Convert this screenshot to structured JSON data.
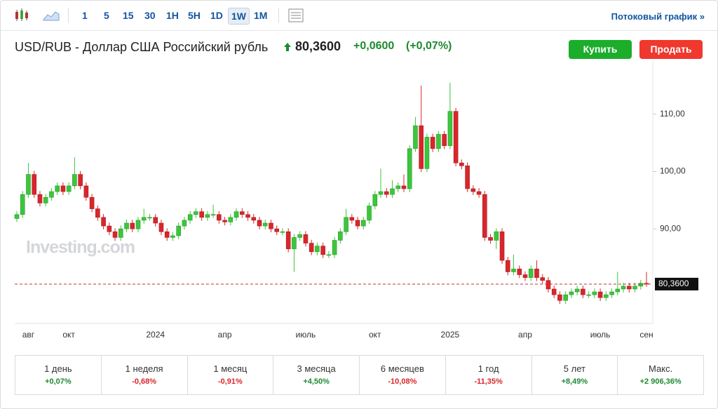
{
  "toolbar": {
    "intervals": [
      "1",
      "5",
      "15",
      "30",
      "1H",
      "5H",
      "1D",
      "1W",
      "1M"
    ],
    "selected": 7,
    "stream_link": "Потоковый график »"
  },
  "header": {
    "title": "USD/RUB - Доллар США Российский рубль",
    "price": "80,3600",
    "change": "+0,0600",
    "change_pct": "(+0,07%)",
    "buy": "Купить",
    "sell": "Продать"
  },
  "periods": [
    {
      "label": "1 день",
      "change": "+0,07%"
    },
    {
      "label": "1 неделя",
      "change": "-0,68%"
    },
    {
      "label": "1 месяц",
      "change": "-0,91%"
    },
    {
      "label": "3 месяца",
      "change": "+4,50%"
    },
    {
      "label": "6 месяцев",
      "change": "-10,08%"
    },
    {
      "label": "1 год",
      "change": "-11,35%"
    },
    {
      "label": "5 лет",
      "change": "+8,49%"
    },
    {
      "label": "Макс.",
      "change": "+2 906,36%"
    }
  ],
  "chart_data": {
    "type": "candlestick",
    "watermark": "Investing.com",
    "up_color": "#3cc63c",
    "down_color": "#d9262b",
    "categories": [
      null,
      null,
      "авг",
      null,
      null,
      null,
      null,
      null,
      null,
      "окт",
      null,
      null,
      null,
      null,
      null,
      null,
      null,
      null,
      null,
      null,
      null,
      null,
      null,
      null,
      "2024",
      null,
      null,
      null,
      null,
      null,
      null,
      null,
      null,
      null,
      null,
      null,
      "апр",
      null,
      null,
      null,
      null,
      null,
      null,
      null,
      null,
      null,
      null,
      null,
      null,
      null,
      "июль",
      null,
      null,
      null,
      null,
      null,
      null,
      null,
      null,
      null,
      null,
      null,
      "окт",
      null,
      null,
      null,
      null,
      null,
      null,
      null,
      null,
      null,
      null,
      null,
      null,
      "2025",
      null,
      null,
      null,
      null,
      null,
      null,
      null,
      null,
      null,
      null,
      null,
      null,
      "апр",
      null,
      null,
      null,
      null,
      null,
      null,
      null,
      null,
      null,
      null,
      null,
      null,
      "июль",
      null,
      null,
      null,
      null,
      null,
      null,
      null,
      "сен"
    ],
    "open": [
      91.8,
      92.5,
      96,
      99.5,
      96,
      94.5,
      95.5,
      96.5,
      97.5,
      96.5,
      97.5,
      99.5,
      97.5,
      95.5,
      93.5,
      92,
      90.5,
      89.5,
      88.5,
      90,
      91,
      90,
      91.5,
      92,
      92,
      91,
      89.5,
      88.5,
      88.8,
      90.5,
      91.5,
      92.5,
      93,
      92,
      92.5,
      92.5,
      91.5,
      91.2,
      92,
      93,
      92.5,
      92,
      91.5,
      90.5,
      91,
      90,
      89.5,
      89.5,
      86.5,
      88.5,
      89,
      87.5,
      86,
      87,
      85.5,
      85.5,
      88,
      89.5,
      92,
      91.5,
      90.5,
      91.5,
      94,
      96,
      96.5,
      96,
      97,
      97.5,
      97,
      104,
      108,
      100.5,
      106,
      104,
      106.5,
      104.5,
      110.5,
      101.5,
      101,
      97,
      96.5,
      96,
      88.5,
      88,
      89.5,
      84.5,
      82.5,
      83,
      82,
      81.5,
      83,
      81.5,
      81,
      79.5,
      78.5,
      77.5,
      78.5,
      79,
      79.5,
      78.5,
      78.5,
      79,
      78,
      78.5,
      79,
      79.5,
      80,
      79.5,
      80,
      80.5
    ],
    "high": [
      93.1,
      96.6,
      101.5,
      100.1,
      96.6,
      96.1,
      97.1,
      98.1,
      98.1,
      98.1,
      102.5,
      100.1,
      98.1,
      96.1,
      94.1,
      92.6,
      91.1,
      90.1,
      90.6,
      91.6,
      91.6,
      92.1,
      93.5,
      92.6,
      92.6,
      91.6,
      90.1,
      89.4,
      91.1,
      92.1,
      93.1,
      93.6,
      93.6,
      93.1,
      94.2,
      93.1,
      92.1,
      92.6,
      93.6,
      93.6,
      93.1,
      92.6,
      92.1,
      91.6,
      91.6,
      90.6,
      90.1,
      90.1,
      89.1,
      89.6,
      89.6,
      88.1,
      87.6,
      87.6,
      86.1,
      88.6,
      90.1,
      93.5,
      92.6,
      92.1,
      92.1,
      94.6,
      96.6,
      100.5,
      97.1,
      98.5,
      98.1,
      99.5,
      104.6,
      109.5,
      115,
      106.6,
      106.6,
      107.1,
      107.1,
      115.5,
      111.1,
      102.1,
      101.6,
      97.6,
      97.1,
      96.6,
      89.1,
      90.1,
      90.1,
      85.1,
      85.5,
      83.6,
      82.6,
      83.6,
      84.5,
      82.1,
      81.6,
      80.1,
      79.1,
      79.1,
      79.6,
      80.1,
      80.1,
      79.1,
      79.6,
      79.6,
      79.1,
      79.6,
      82.5,
      80.6,
      80.6,
      80.6,
      81.1,
      82.5
    ],
    "low": [
      91.2,
      91.9,
      95.4,
      95.4,
      93.9,
      93.9,
      94.9,
      95.9,
      95.9,
      95.9,
      96.9,
      96.9,
      94.9,
      92.9,
      91.4,
      89.9,
      88.9,
      87.9,
      87.9,
      89.4,
      89.4,
      89.4,
      90.9,
      91.4,
      90.4,
      88.9,
      87.9,
      87.9,
      88.2,
      89.9,
      90.9,
      91.9,
      91.4,
      91.4,
      91.9,
      90.9,
      90.6,
      90.6,
      91.4,
      91.9,
      91.4,
      90.9,
      89.9,
      89.9,
      89.4,
      88.9,
      88.9,
      85.9,
      82.5,
      87.9,
      86.9,
      85.4,
      85.4,
      84.9,
      84.9,
      84.9,
      87.4,
      88.9,
      90.9,
      89.9,
      89.9,
      90.9,
      93.4,
      95.4,
      95.4,
      95.4,
      96.4,
      96.4,
      96.4,
      103.4,
      99.9,
      99.9,
      103.4,
      103.4,
      103.9,
      103.9,
      100.9,
      100.4,
      96.4,
      95.9,
      95.4,
      87.9,
      87.4,
      86.5,
      83.9,
      81.9,
      81.9,
      81.4,
      80.9,
      80.9,
      80.9,
      80.4,
      78.9,
      77.9,
      76.9,
      76.9,
      77.9,
      78.4,
      77.9,
      77.9,
      77.9,
      77.4,
      77.4,
      77.9,
      78.4,
      78.9,
      78.9,
      78.9,
      79.4,
      79.9
    ],
    "close": [
      92.5,
      96,
      99.5,
      96,
      94.5,
      95.5,
      96.5,
      97.5,
      96.5,
      97.5,
      99.5,
      97.5,
      95.5,
      93.5,
      92,
      90.5,
      89.5,
      88.5,
      90,
      91,
      90,
      91.5,
      92,
      92,
      91,
      89.5,
      88.5,
      88.8,
      90.5,
      91.5,
      92.5,
      93,
      92,
      92.5,
      92.5,
      91.5,
      91.2,
      92,
      93,
      92.5,
      92,
      91.5,
      90.5,
      91,
      90,
      89.5,
      89.5,
      86.5,
      88.5,
      89,
      87.5,
      86,
      87,
      85.5,
      85.5,
      88,
      89.5,
      92,
      91.5,
      90.5,
      91.5,
      94,
      96,
      96.5,
      96,
      97,
      97.5,
      97,
      104,
      108,
      100.5,
      106,
      104,
      106.5,
      104.5,
      110.5,
      101.5,
      101,
      97,
      96.5,
      96,
      88.5,
      88,
      89.5,
      84.5,
      82.5,
      83,
      82,
      81.5,
      83,
      81.5,
      81,
      79.5,
      78.5,
      77.5,
      78.5,
      79,
      79.5,
      78.5,
      78.5,
      79,
      78,
      78.5,
      79,
      79.5,
      80,
      79.5,
      80,
      80.5,
      80.36
    ],
    "ylim": [
      73.5,
      119.4
    ],
    "yticks": [
      {
        "value": 90,
        "label": "90,00"
      },
      {
        "value": 100,
        "label": "100,00"
      },
      {
        "value": 110,
        "label": "110,00"
      }
    ],
    "last_price": {
      "value": 80.36,
      "label": "80,3600"
    }
  }
}
